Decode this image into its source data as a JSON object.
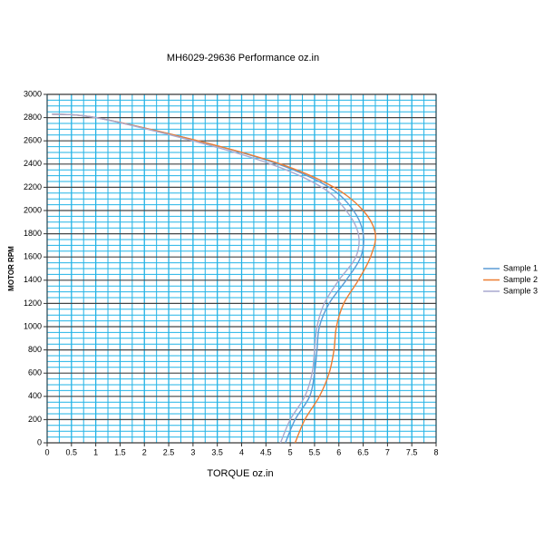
{
  "chart_data": {
    "type": "line",
    "title": "MH6029-29636  Performance oz.in",
    "x_label": "TORQUE  oz.in",
    "y_label": "MOTOR RPM",
    "xlim": [
      0,
      8
    ],
    "xticks": [
      0,
      0.5,
      1,
      1.5,
      2,
      2.5,
      3,
      3.5,
      4,
      4.5,
      5,
      5.5,
      6,
      6.5,
      7,
      7.5,
      8
    ],
    "ylim": [
      0,
      3000
    ],
    "yticks": [
      0,
      200,
      400,
      600,
      800,
      1000,
      1200,
      1400,
      1600,
      1800,
      2000,
      2200,
      2400,
      2600,
      2800,
      3000
    ],
    "grid": true,
    "minor_grid": true,
    "legend": "right",
    "series": [
      {
        "name": "Sample 1",
        "color": "#5b9bd5",
        "x": [
          4.9,
          5.1,
          5.4,
          5.5,
          5.55,
          5.6,
          5.8,
          6.15,
          6.45,
          6.5,
          6.3,
          5.8,
          4.75,
          3.1,
          1.0,
          0.1
        ],
        "values": [
          0,
          200,
          400,
          600,
          800,
          1000,
          1200,
          1400,
          1600,
          1800,
          2000,
          2200,
          2400,
          2600,
          2800,
          2830
        ]
      },
      {
        "name": "Sample 2",
        "color": "#ed7d31",
        "x": [
          5.1,
          5.3,
          5.6,
          5.8,
          5.9,
          5.95,
          6.1,
          6.4,
          6.65,
          6.75,
          6.5,
          5.9,
          4.8,
          3.1,
          1.0,
          0.1
        ],
        "values": [
          0,
          200,
          400,
          600,
          800,
          1000,
          1200,
          1400,
          1600,
          1800,
          2000,
          2200,
          2400,
          2600,
          2800,
          2830
        ]
      },
      {
        "name": "Sample 3",
        "color": "#a9a9cf",
        "x": [
          4.8,
          5.0,
          5.3,
          5.45,
          5.5,
          5.55,
          5.7,
          6.0,
          6.35,
          6.4,
          6.15,
          5.65,
          4.6,
          3.0,
          1.0,
          0.1
        ],
        "values": [
          0,
          200,
          400,
          600,
          800,
          1000,
          1200,
          1400,
          1600,
          1800,
          2000,
          2200,
          2400,
          2600,
          2800,
          2830
        ]
      }
    ]
  }
}
